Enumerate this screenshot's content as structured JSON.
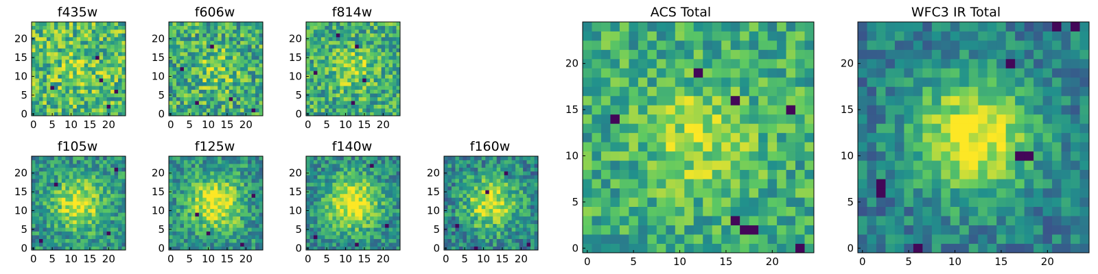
{
  "chart_data": {
    "type": "heatmap",
    "colormap": "viridis",
    "grid": false,
    "panels": [
      {
        "id": "f435w",
        "title": "f435w",
        "size": 25,
        "xticks": [
          "0",
          "5",
          "10",
          "15",
          "20"
        ],
        "yticks": [
          "0",
          "5",
          "10",
          "15",
          "20"
        ],
        "seed": 11,
        "center_strength": 0.12,
        "sigma": 4,
        "noise": 0.55,
        "base": 0.68,
        "dark_pixels": [
          [
            5,
            7
          ],
          [
            18,
            9
          ],
          [
            20,
            2
          ],
          [
            17,
            15
          ],
          [
            22,
            6
          ]
        ]
      },
      {
        "id": "f606w",
        "title": "f606w",
        "size": 25,
        "xticks": [
          "0",
          "5",
          "10",
          "15",
          "20"
        ],
        "yticks": [
          "0",
          "5",
          "10",
          "15",
          "20"
        ],
        "seed": 23,
        "center_strength": 0.18,
        "sigma": 4,
        "noise": 0.55,
        "base": 0.62,
        "dark_pixels": [
          [
            3,
            12
          ],
          [
            11,
            18
          ],
          [
            16,
            4
          ],
          [
            22,
            1
          ],
          [
            7,
            3
          ]
        ]
      },
      {
        "id": "f814w",
        "title": "f814w",
        "size": 25,
        "xticks": [
          "0",
          "5",
          "10",
          "15",
          "20"
        ],
        "yticks": [
          "0",
          "5",
          "10",
          "15",
          "20"
        ],
        "seed": 37,
        "center_strength": 0.22,
        "sigma": 4,
        "noise": 0.5,
        "base": 0.62,
        "dark_pixels": [
          [
            13,
            18
          ],
          [
            15,
            9
          ],
          [
            12,
            3
          ],
          [
            2,
            11
          ],
          [
            8,
            21
          ]
        ]
      },
      {
        "id": "f105w",
        "title": "f105w",
        "size": 25,
        "xticks": [
          "0",
          "5",
          "10",
          "15",
          "20"
        ],
        "yticks": [
          "0",
          "5",
          "10",
          "15",
          "20"
        ],
        "seed": 41,
        "center_strength": 0.45,
        "sigma": 5,
        "noise": 0.42,
        "base": 0.5,
        "dark_pixels": [
          [
            20,
            4
          ],
          [
            2,
            2
          ],
          [
            22,
            21
          ],
          [
            6,
            17
          ]
        ]
      },
      {
        "id": "f125w",
        "title": "f125w",
        "size": 25,
        "xticks": [
          "0",
          "5",
          "10",
          "15",
          "20"
        ],
        "yticks": [
          "0",
          "5",
          "10",
          "15",
          "20"
        ],
        "seed": 53,
        "center_strength": 0.5,
        "sigma": 5,
        "noise": 0.42,
        "base": 0.5,
        "dark_pixels": [
          [
            10,
            4
          ],
          [
            19,
            1
          ],
          [
            22,
            14
          ],
          [
            7,
            9
          ]
        ]
      },
      {
        "id": "f140w",
        "title": "f140w",
        "size": 25,
        "xticks": [
          "0",
          "5",
          "10",
          "15",
          "20"
        ],
        "yticks": [
          "0",
          "5",
          "10",
          "15",
          "20"
        ],
        "seed": 67,
        "center_strength": 0.55,
        "sigma": 5,
        "noise": 0.4,
        "base": 0.48,
        "dark_pixels": [
          [
            17,
            22
          ],
          [
            21,
            6
          ],
          [
            2,
            3
          ],
          [
            13,
            1
          ]
        ]
      },
      {
        "id": "f160w",
        "title": "f160w",
        "size": 25,
        "xticks": [
          "0",
          "5",
          "10",
          "15",
          "20"
        ],
        "yticks": [
          "0",
          "5",
          "10",
          "15",
          "20"
        ],
        "seed": 79,
        "center_strength": 0.5,
        "sigma": 5,
        "noise": 0.45,
        "base": 0.45,
        "dark_pixels": [
          [
            8,
            0
          ],
          [
            3,
            6
          ],
          [
            16,
            20
          ],
          [
            11,
            15
          ],
          [
            22,
            1
          ]
        ]
      },
      {
        "id": "acs_total",
        "title": "ACS Total",
        "size": 25,
        "xticks": [
          "0",
          "5",
          "10",
          "15",
          "20"
        ],
        "yticks": [
          "0",
          "5",
          "10",
          "15",
          "20"
        ],
        "seed": 97,
        "center_strength": 0.25,
        "sigma": 4,
        "noise": 0.42,
        "base": 0.62,
        "dark_pixels": [
          [
            3,
            14
          ],
          [
            12,
            19
          ],
          [
            16,
            16
          ],
          [
            22,
            15
          ],
          [
            18,
            2
          ],
          [
            17,
            2
          ],
          [
            23,
            0
          ],
          [
            16,
            3
          ]
        ]
      },
      {
        "id": "wfc3_total",
        "title": "WFC3 IR Total",
        "size": 25,
        "xticks": [
          "0",
          "5",
          "10",
          "15",
          "20"
        ],
        "yticks": [
          "0",
          "5",
          "10",
          "15",
          "20"
        ],
        "seed": 113,
        "center_strength": 0.6,
        "sigma": 4.5,
        "noise": 0.35,
        "base": 0.42,
        "dark_pixels": [
          [
            2,
            7
          ],
          [
            2,
            6
          ],
          [
            6,
            0
          ],
          [
            16,
            20
          ],
          [
            21,
            24
          ],
          [
            23,
            24
          ],
          [
            18,
            10
          ],
          [
            17,
            10
          ]
        ]
      }
    ]
  }
}
